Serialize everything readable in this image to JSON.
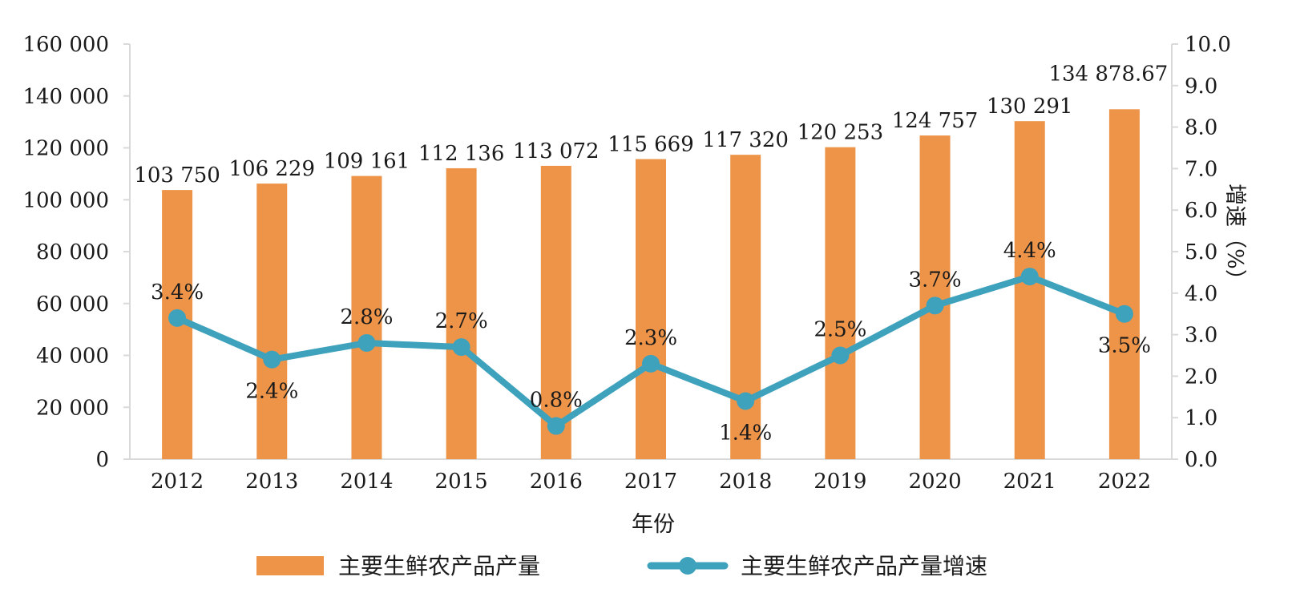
{
  "chart_data": {
    "type": "bar+line",
    "categories": [
      "2012",
      "2013",
      "2014",
      "2015",
      "2016",
      "2017",
      "2018",
      "2019",
      "2020",
      "2021",
      "2022"
    ],
    "series": [
      {
        "name": "主要生鲜农产品产量",
        "type": "bar",
        "axis": "left",
        "values": [
          103750,
          106229,
          109161,
          112136,
          113072,
          115669,
          117320,
          120253,
          124757,
          130291,
          134878.67
        ],
        "labels": [
          "103 750",
          "106 229",
          "109 161",
          "112 136",
          "113 072",
          "115 669",
          "117 320",
          "120 253",
          "124 757",
          "130 291",
          "134 878.67"
        ]
      },
      {
        "name": "主要生鲜农产品产量增速",
        "type": "line",
        "axis": "right",
        "values": [
          3.4,
          2.4,
          2.8,
          2.7,
          0.8,
          2.3,
          1.4,
          2.5,
          3.7,
          4.4,
          3.5
        ],
        "labels": [
          "3.4%",
          "2.4%",
          "2.8%",
          "2.7%",
          "0.8%",
          "2.3%",
          "1.4%",
          "2.5%",
          "3.7%",
          "4.4%",
          "3.5%"
        ]
      }
    ],
    "xlabel": "年份",
    "ylabel": "",
    "y2label": "增速（%）",
    "ylim": [
      0,
      160000
    ],
    "y2lim": [
      0,
      10
    ],
    "yticks": [
      "0",
      "20 000",
      "40 000",
      "60 000",
      "80 000",
      "100 000",
      "120 000",
      "140 000",
      "160 000"
    ],
    "y2ticks": [
      "0.0",
      "1.0",
      "2.0",
      "3.0",
      "4.0",
      "5.0",
      "6.0",
      "7.0",
      "8.0",
      "9.0",
      "10.0"
    ],
    "grid": false,
    "legend_position": "bottom",
    "colors": {
      "bar": "#ED9449",
      "line": "#3EA2BC",
      "axis": "#D9D9D9"
    }
  }
}
